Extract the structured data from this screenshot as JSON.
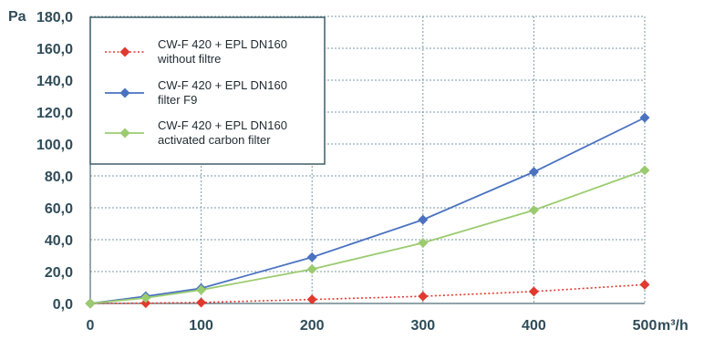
{
  "chart_data": {
    "type": "line",
    "title": "",
    "ylabel": "Pa",
    "xlabel": "m³/h",
    "ylim": [
      0,
      180
    ],
    "xlim": [
      0,
      500
    ],
    "grid": true,
    "legend_position": "top-left",
    "y_ticks": [
      "0,0",
      "20,0",
      "40,0",
      "60,0",
      "80,0",
      "100,0",
      "120,0",
      "140,0",
      "160,0",
      "180,0"
    ],
    "x_ticks": [
      "0",
      "100",
      "200",
      "300",
      "400",
      "500"
    ],
    "series": [
      {
        "name": "CW-F 420 + EPL DN160 without filtre",
        "legend_lines": [
          "CW-F 420 + EPL DN160",
          "without filtre"
        ],
        "color": "#e03a2f",
        "line_style": "dotted",
        "x": [
          0,
          50,
          100,
          200,
          300,
          400,
          500
        ],
        "values": [
          0.0,
          0.2,
          0.6,
          2.5,
          4.5,
          7.5,
          11.8
        ]
      },
      {
        "name": "CW-F 420 + EPL DN160 filter F9",
        "legend_lines": [
          "CW-F 420 + EPL DN160",
          "filter F9"
        ],
        "color": "#4a72c0",
        "line_style": "solid",
        "x": [
          0,
          50,
          100,
          200,
          300,
          400,
          500
        ],
        "values": [
          0.0,
          4.5,
          9.5,
          29.0,
          52.5,
          82.5,
          116.5
        ]
      },
      {
        "name": "CW-F 420 + EPL DN160 activated carbon filter",
        "legend_lines": [
          "CW-F 420 + EPL DN160",
          "activated carbon filter"
        ],
        "color": "#9bcb6f",
        "line_style": "solid",
        "x": [
          0,
          50,
          100,
          200,
          300,
          400,
          500
        ],
        "values": [
          0.0,
          3.5,
          8.5,
          21.5,
          38.0,
          58.5,
          83.5
        ]
      }
    ]
  }
}
